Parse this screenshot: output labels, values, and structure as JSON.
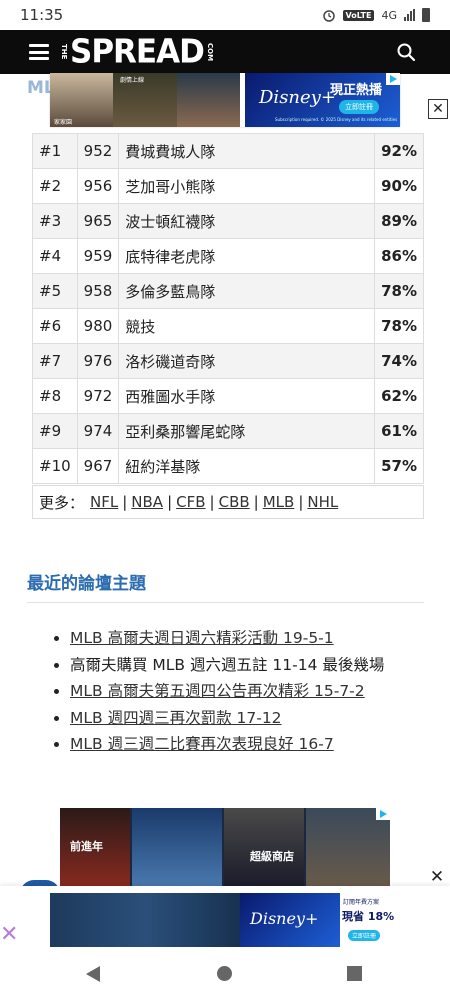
{
  "status_bar": {
    "time": "11:35",
    "volte": "VoLTE",
    "network": "4G"
  },
  "header": {
    "logo_left": "THE",
    "logo_main": "SPREAD",
    "logo_right": "COM"
  },
  "section_title": "MLB",
  "top_ad": {
    "brand": "Disney+",
    "headline": "現正熱播",
    "cta": "立即註冊",
    "poster_labels": [
      "劇情上線",
      "家家園"
    ],
    "fineprint": "Subscription required. © 2025 Disney and its related entities",
    "close_label": "✕"
  },
  "rankings": [
    {
      "rank": "#1",
      "id": "952",
      "team": "費城費城人隊",
      "pct": "92%"
    },
    {
      "rank": "#2",
      "id": "956",
      "team": "芝加哥小熊隊",
      "pct": "90%"
    },
    {
      "rank": "#3",
      "id": "965",
      "team": "波士頓紅襪隊",
      "pct": "89%"
    },
    {
      "rank": "#4",
      "id": "959",
      "team": "底特律老虎隊",
      "pct": "86%"
    },
    {
      "rank": "#5",
      "id": "958",
      "team": "多倫多藍鳥隊",
      "pct": "78%"
    },
    {
      "rank": "#6",
      "id": "980",
      "team": "競技",
      "pct": "78%"
    },
    {
      "rank": "#7",
      "id": "976",
      "team": "洛杉磯道奇隊",
      "pct": "74%"
    },
    {
      "rank": "#8",
      "id": "972",
      "team": "西雅圖水手隊",
      "pct": "62%"
    },
    {
      "rank": "#9",
      "id": "974",
      "team": "亞利桑那響尾蛇隊",
      "pct": "61%"
    },
    {
      "rank": "#10",
      "id": "967",
      "team": "紐約洋基隊",
      "pct": "57%"
    }
  ],
  "more": {
    "label": "更多：",
    "links": [
      "NFL",
      "NBA",
      "CFB",
      "CBB",
      "MLB",
      "NHL"
    ]
  },
  "forum": {
    "title": "最近的論壇主題",
    "topics": [
      {
        "text": "MLB 高爾夫週日週六精彩活動 19-5-1",
        "link": true
      },
      {
        "text": "高爾夫購買 MLB 週六週五註 11-14 最後幾場",
        "link": false
      },
      {
        "text": "MLB 高爾夫第五週四公告再次精彩 15-7-2",
        "link": true
      },
      {
        "text": "MLB 週四週三再次罰款 17-12",
        "link": true
      },
      {
        "text": "MLB 週三週二比賽再次表現良好 16-7",
        "link": true
      }
    ]
  },
  "mid_ad": {
    "text1": "前進年",
    "text2": "超級商店",
    "close_label": "✕"
  },
  "bottom_ad": {
    "brand": "Disney+",
    "offer_top": "訂閱年費方案",
    "offer_main": "現省 18%",
    "cta": "立即註冊"
  },
  "colors": {
    "header_bg": "#0c0c0c",
    "accent_blue": "#2b6cb0",
    "disney_blue": "#1d5fd6"
  },
  "icons": [
    "menu-icon",
    "search-icon",
    "close-icon",
    "ad-choices-icon",
    "back-icon",
    "home-icon",
    "recents-icon"
  ]
}
